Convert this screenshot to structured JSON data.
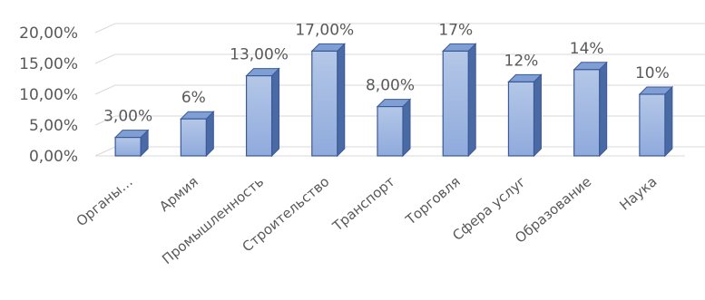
{
  "chart_data": {
    "type": "bar",
    "style": "3d-column",
    "categories": [
      "Органы…",
      "Армия",
      "Промышленность",
      "Строительство",
      "Транспорт",
      "Торговля",
      "Сфера услуг",
      "Образование",
      "Наука"
    ],
    "values": [
      3,
      6,
      13,
      17,
      8,
      17,
      12,
      14,
      10
    ],
    "data_labels": [
      "3,00%",
      "6%",
      "13,00%",
      "17,00%",
      "8,00%",
      "17%",
      "12%",
      "14%",
      "10%"
    ],
    "y_ticks": [
      "0,00%",
      "5,00%",
      "10,00%",
      "15,00%",
      "20,00%"
    ],
    "ylim": [
      0,
      20
    ],
    "grid": true,
    "legend": "none",
    "colors": {
      "bar_top": "#b4c7e7",
      "bar_bottom": "#8faadc",
      "bar_side": "#4a6aa5",
      "bar_edge": "#3b5998",
      "grid": "#d9d9d9"
    }
  }
}
